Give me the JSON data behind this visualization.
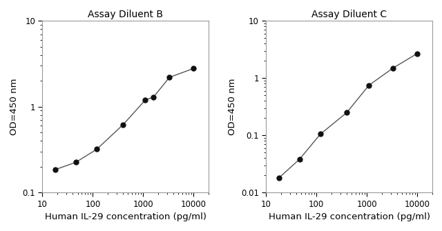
{
  "panel_B": {
    "title": "Assay Diluent B",
    "x": [
      18,
      46,
      120,
      400,
      1100,
      1600,
      3300,
      10000
    ],
    "y": [
      0.185,
      0.225,
      0.32,
      0.62,
      1.2,
      1.3,
      2.2,
      2.8
    ],
    "xlim": [
      10,
      20000
    ],
    "ylim": [
      0.1,
      10
    ],
    "xlabel": "Human IL-29 concentration (pg/ml)",
    "ylabel": "OD=450 nm",
    "yticks": [
      0.1,
      1,
      10
    ],
    "yticklabels": [
      "0.1",
      "1",
      "10"
    ]
  },
  "panel_C": {
    "title": "Assay Diluent C",
    "x": [
      18,
      46,
      120,
      400,
      1100,
      3300,
      10000
    ],
    "y": [
      0.018,
      0.038,
      0.105,
      0.25,
      0.75,
      1.5,
      2.7
    ],
    "xlim": [
      10,
      20000
    ],
    "ylim": [
      0.01,
      10
    ],
    "xlabel": "Human IL-29 concentration (pg/ml)",
    "ylabel": "OD=450 nm",
    "yticks": [
      0.01,
      0.1,
      1,
      10
    ],
    "yticklabels": [
      "0.01",
      "0.1",
      "1",
      "10"
    ]
  },
  "line_color": "#555555",
  "marker_color": "#111111",
  "marker_size": 5,
  "line_width": 1.0,
  "title_fontsize": 10,
  "label_fontsize": 9.5,
  "tick_fontsize": 8.5,
  "background_color": "#ffffff"
}
